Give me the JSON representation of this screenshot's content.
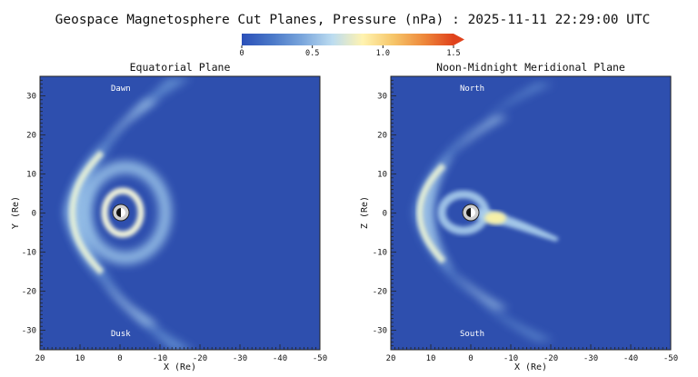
{
  "figure": {
    "title": "Geospace Magnetosphere Cut Planes, Pressure (nPa) : 2025-11-11 22:29:00 UTC"
  },
  "colorbar": {
    "min": 0,
    "max": 1.5,
    "ticks": [
      {
        "value": 0,
        "label": "0"
      },
      {
        "value": 0.5,
        "label": "0.5"
      },
      {
        "value": 1.0,
        "label": "1.0"
      },
      {
        "value": 1.5,
        "label": "1.5"
      }
    ],
    "stops": [
      "#2b50b8",
      "#4a78c8",
      "#7aa6dc",
      "#bcdcf0",
      "#fff3b0",
      "#f6c66a",
      "#ee8a3c",
      "#e0421c"
    ]
  },
  "colors": {
    "background_field": "#2e4fae",
    "earth_fill": "#cfcfcf",
    "earth_night": "#111111"
  },
  "chart_data": [
    {
      "type": "heatmap",
      "title": "Equatorial Plane",
      "xlabel": "X (Re)",
      "ylabel": "Y (Re)",
      "xlim": [
        20,
        -50
      ],
      "ylim": [
        -35,
        35
      ],
      "xticks": [
        20,
        10,
        0,
        -10,
        -20,
        -30,
        -40,
        -50
      ],
      "yticks": [
        30,
        20,
        10,
        0,
        -10,
        -20,
        -30
      ],
      "annotations": [
        {
          "text": "Dawn",
          "x": 4,
          "y": 32
        },
        {
          "text": "Dusk",
          "x": 4,
          "y": -30
        }
      ],
      "earth": {
        "x": 0,
        "y": 0
      }
    },
    {
      "type": "heatmap",
      "title": "Noon-Midnight Meridional Plane",
      "xlabel": "X (Re)",
      "ylabel": "Z (Re)",
      "xlim": [
        20,
        -50
      ],
      "ylim": [
        -35,
        35
      ],
      "xticks": [
        20,
        10,
        0,
        -10,
        -20,
        -30,
        -40,
        -50
      ],
      "yticks": [
        30,
        20,
        10,
        0,
        -10,
        -20,
        -30
      ],
      "annotations": [
        {
          "text": "North",
          "x": 4,
          "y": 32
        },
        {
          "text": "South",
          "x": 4,
          "y": -30
        }
      ],
      "earth": {
        "x": 0,
        "y": 0
      }
    }
  ]
}
